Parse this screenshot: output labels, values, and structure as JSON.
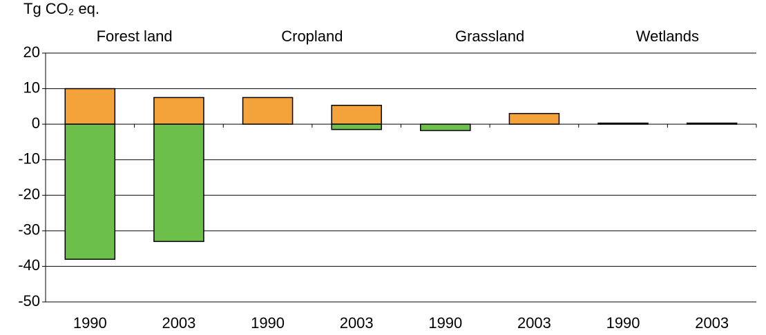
{
  "chart_data": {
    "type": "bar",
    "unit_label": "Tg CO₂ eq.",
    "groups": [
      "Forest land",
      "Cropland",
      "Grassland",
      "Wetlands"
    ],
    "categories": [
      "1990",
      "2003",
      "1990",
      "2003",
      "1990",
      "2003",
      "1990",
      "2003"
    ],
    "series": [
      {
        "color": "#f4a23a",
        "values": [
          10,
          7.5,
          7.5,
          5.3,
          0,
          3,
          0.3,
          0.3
        ]
      },
      {
        "color": "#6cbf4a",
        "values": [
          -38,
          -33,
          0,
          -1.5,
          -1.8,
          0,
          0,
          0
        ]
      }
    ],
    "ylim": [
      -50,
      20
    ],
    "yticks": [
      -50,
      -40,
      -30,
      -20,
      -10,
      0,
      10,
      20
    ],
    "grid": true
  }
}
